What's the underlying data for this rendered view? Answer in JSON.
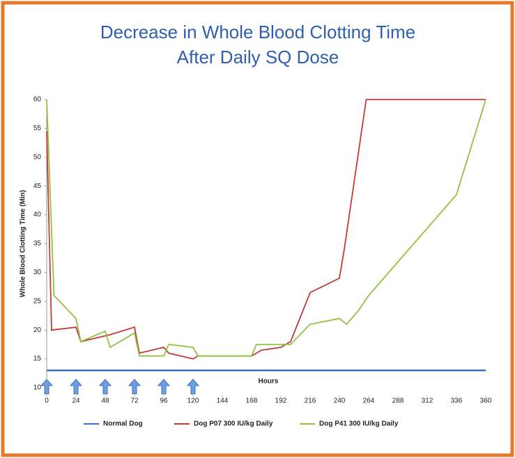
{
  "chart_data": {
    "type": "line",
    "title": [
      "Decrease in Whole Blood Clotting Time",
      "After Daily SQ Dose"
    ],
    "x_label": "Hours",
    "y_label": "Whole Blood Clotting Time (Min)",
    "xlim": [
      0,
      360
    ],
    "xticks": [
      0,
      24,
      48,
      72,
      96,
      120,
      144,
      168,
      192,
      216,
      240,
      264,
      288,
      312,
      336,
      360
    ],
    "ylim": [
      10,
      60
    ],
    "yticks": [
      10,
      15,
      20,
      25,
      30,
      35,
      40,
      45,
      50,
      55,
      60
    ],
    "legend": "bottom",
    "series": [
      {
        "name": "Normal Dog",
        "color": "#3b6fc4",
        "x": [
          0,
          360
        ],
        "values": [
          13,
          13
        ]
      },
      {
        "name": "Dog P07 300 IU/kg Daily",
        "color": "#c0393b",
        "x": [
          0,
          4,
          24,
          28,
          48,
          52,
          72,
          76,
          96,
          100,
          120,
          124,
          168,
          176,
          192,
          200,
          216,
          240,
          244,
          262,
          268,
          336,
          360
        ],
        "values": [
          54.5,
          20,
          20.5,
          18,
          19,
          19.2,
          20.5,
          16,
          17,
          16,
          15,
          15.5,
          15.5,
          16.5,
          17,
          18,
          26.5,
          29,
          34,
          60,
          60,
          60,
          60
        ]
      },
      {
        "name": "Dog P41 300 IU/kg Daily",
        "color": "#92c140",
        "x": [
          0,
          6,
          24,
          28,
          48,
          52,
          72,
          76,
          96,
          100,
          120,
          124,
          168,
          172,
          192,
          200,
          216,
          240,
          246,
          256,
          264,
          336,
          360
        ],
        "values": [
          60,
          26,
          22,
          18,
          19.8,
          17,
          19.5,
          15.5,
          15.5,
          17.5,
          17,
          15.5,
          15.5,
          17.5,
          17.5,
          17.5,
          21,
          22,
          21,
          23.5,
          26,
          43.5,
          60
        ]
      }
    ]
  }
}
